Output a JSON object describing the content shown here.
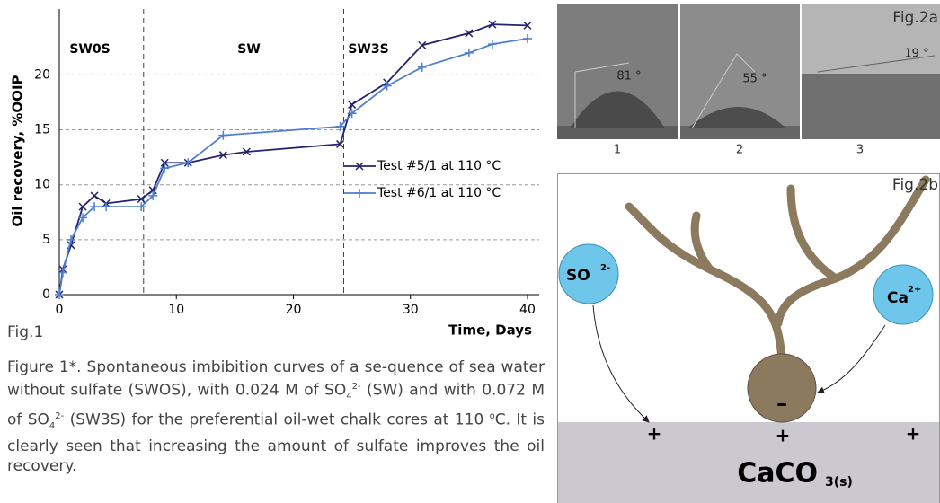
{
  "chart_data": {
    "type": "line",
    "ylabel": "Oil recovery, %OOIP",
    "xlabel": "Time, Days",
    "xlim": [
      0,
      41
    ],
    "ylim": [
      0,
      26
    ],
    "xticks": [
      0,
      10,
      20,
      30,
      40
    ],
    "yticks": [
      0,
      5,
      10,
      15,
      20
    ],
    "grid": true,
    "phases": [
      "SW0S",
      "SW",
      "SW3S"
    ],
    "phase_boundaries": [
      7.2,
      24.3
    ],
    "series": [
      {
        "name": "Test #5/1 at 110 °C",
        "color": "#23236e",
        "marker": "x",
        "x": [
          0,
          0.3,
          1,
          2,
          3,
          4,
          7,
          8,
          9,
          11,
          14,
          16,
          24,
          25,
          28,
          31,
          35,
          37,
          40
        ],
        "values": [
          0,
          2.3,
          4.5,
          8,
          9,
          8.3,
          8.7,
          9.5,
          12,
          12,
          12.7,
          13,
          13.7,
          17.3,
          19.3,
          22.7,
          23.8,
          24.6,
          24.5
        ]
      },
      {
        "name": "Test #6/1 at 110 °C",
        "color": "#4f7fd0",
        "marker": "+",
        "x": [
          0,
          0.3,
          1,
          2,
          3,
          4,
          7,
          8,
          9,
          11,
          14,
          24,
          25,
          28,
          31,
          35,
          37,
          40
        ],
        "values": [
          0,
          2,
          5,
          7,
          8,
          8,
          8,
          9,
          11.5,
          12,
          14.5,
          15.3,
          16.5,
          19,
          20.7,
          22,
          22.8,
          23.3
        ]
      }
    ]
  },
  "fig1_label": "Fig.1",
  "caption": [
    "Figure 1*. Spontaneous imbibition curves of a se-quence of sea water without sulfate (SWOS), with 0.024 M of SO",
    "4",
    "2-",
    " (SW) and with 0.072 M of SO",
    "4",
    "2-",
    " (SW3S) for the preferential oil-wet chalk cores at 110 ",
    "o",
    "C. It is clearly seen that increasing the amount of sulfate improves the oil recovery."
  ],
  "fig2a": {
    "label": "Fig.2a",
    "angles": [
      "81 °",
      "55 °",
      "19 °"
    ],
    "panels": [
      "1",
      "2",
      "3"
    ]
  },
  "fig2b": {
    "label": "Fig.2b",
    "sulfate": "SO",
    "sulfate_charge": "2-",
    "calcium": "Ca",
    "calcium_charge": "2+",
    "minus": "–",
    "plus": [
      "+",
      "+",
      "+"
    ],
    "mineral": "CaCO",
    "mineral_sub": "3(s)"
  }
}
